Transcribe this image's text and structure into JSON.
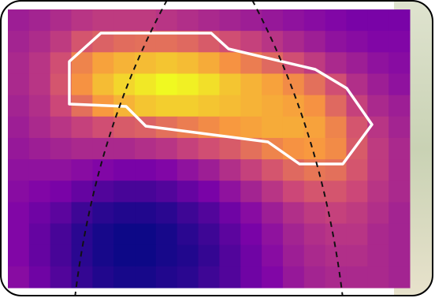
{
  "chart_data": {
    "type": "heatmap",
    "colormap": "plasma",
    "values": [
      [
        40,
        42,
        45,
        48,
        50,
        50,
        50,
        48,
        46,
        44,
        42,
        40,
        38,
        36,
        34,
        32,
        30,
        30,
        30
      ],
      [
        42,
        45,
        50,
        58,
        62,
        65,
        66,
        66,
        64,
        60,
        56,
        52,
        48,
        44,
        40,
        36,
        34,
        32,
        32
      ],
      [
        44,
        48,
        56,
        72,
        80,
        84,
        86,
        88,
        86,
        82,
        76,
        70,
        64,
        56,
        50,
        44,
        40,
        36,
        34
      ],
      [
        44,
        48,
        58,
        76,
        86,
        92,
        96,
        100,
        98,
        94,
        88,
        84,
        80,
        74,
        66,
        56,
        46,
        40,
        36
      ],
      [
        42,
        46,
        54,
        66,
        78,
        84,
        88,
        90,
        90,
        88,
        86,
        84,
        82,
        80,
        76,
        64,
        52,
        44,
        40
      ],
      [
        40,
        44,
        48,
        52,
        56,
        60,
        62,
        66,
        70,
        74,
        78,
        80,
        82,
        82,
        80,
        72,
        58,
        48,
        42
      ],
      [
        38,
        40,
        42,
        44,
        44,
        44,
        46,
        48,
        52,
        56,
        60,
        66,
        72,
        76,
        78,
        74,
        60,
        50,
        44
      ],
      [
        36,
        36,
        36,
        34,
        32,
        30,
        30,
        32,
        36,
        40,
        46,
        52,
        58,
        64,
        68,
        66,
        58,
        50,
        44
      ],
      [
        34,
        32,
        30,
        26,
        22,
        20,
        20,
        22,
        26,
        30,
        36,
        42,
        48,
        54,
        58,
        58,
        54,
        48,
        44
      ],
      [
        32,
        28,
        24,
        18,
        14,
        12,
        12,
        14,
        18,
        22,
        28,
        34,
        40,
        46,
        50,
        52,
        50,
        46,
        42
      ],
      [
        32,
        26,
        20,
        14,
        10,
        8,
        8,
        10,
        14,
        18,
        24,
        30,
        36,
        42,
        46,
        48,
        48,
        44,
        42
      ],
      [
        32,
        26,
        20,
        14,
        10,
        8,
        8,
        10,
        12,
        16,
        22,
        28,
        34,
        40,
        44,
        46,
        46,
        44,
        42
      ],
      [
        34,
        28,
        22,
        16,
        12,
        10,
        10,
        12,
        14,
        18,
        22,
        28,
        32,
        38,
        42,
        44,
        44,
        44,
        42
      ]
    ]
  }
}
